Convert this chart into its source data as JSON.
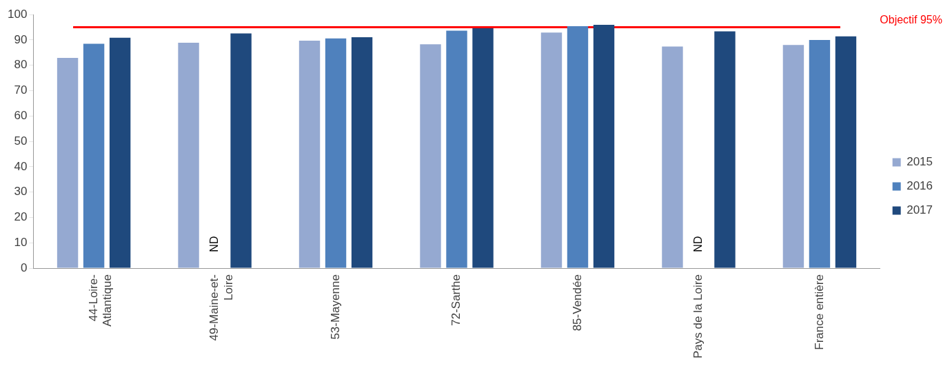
{
  "chart_data": {
    "type": "bar",
    "categories": [
      "44-Loire-Atlantique",
      "49-Maine-et-Loire",
      "53-Mayenne",
      "72-Sarthe",
      "85-Vendée",
      "Pays de la Loire",
      "France entière"
    ],
    "series": [
      {
        "name": "2015",
        "color": "#95a9d1",
        "values": [
          82.9,
          88.9,
          89.7,
          88.3,
          92.9,
          87.4,
          88.0
        ]
      },
      {
        "name": "2016",
        "color": "#4f81bd",
        "values": [
          88.5,
          null,
          90.6,
          93.7,
          95.4,
          null,
          90.0
        ]
      },
      {
        "name": "2017",
        "color": "#1f497d",
        "values": [
          90.9,
          92.6,
          91.1,
          94.6,
          96.0,
          93.4,
          91.4
        ]
      }
    ],
    "ylim": [
      0,
      100
    ],
    "yticks": [
      0,
      10,
      20,
      30,
      40,
      50,
      60,
      70,
      80,
      90,
      100
    ],
    "grid": false,
    "legend": "right",
    "ref_lines": [
      {
        "axis": "y",
        "value": 95,
        "label": "Objectif 95%",
        "color": "#ff0000"
      }
    ],
    "annotations": [
      "ND",
      "ND"
    ]
  }
}
